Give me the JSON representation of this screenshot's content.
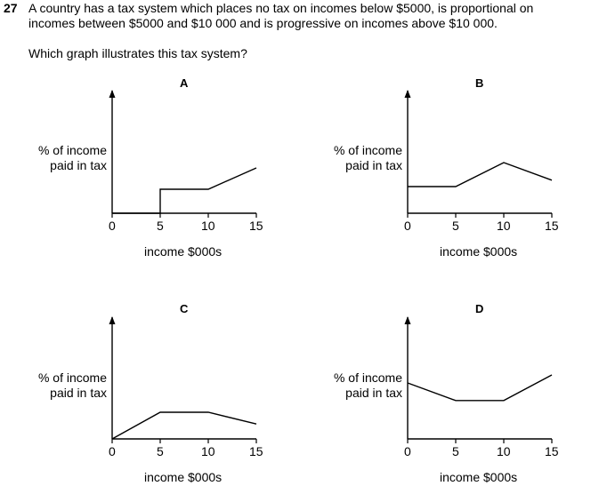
{
  "question": {
    "number": "27",
    "line1": "A country has a tax system which places no tax on incomes below $5000, is proportional on",
    "line2": "incomes between $5000 and $10 000 and is progressive on incomes above $10 000.",
    "prompt": "Which graph illustrates this tax system?"
  },
  "axis_common": {
    "ylabel_line1": "% of income",
    "ylabel_line2": "paid in tax",
    "xlabel": "income $000s",
    "ticks": [
      "0",
      "5",
      "10",
      "15"
    ]
  },
  "graphs": [
    {
      "label": "A",
      "points": [
        [
          0,
          0
        ],
        [
          5,
          0
        ],
        [
          5,
          0.45
        ],
        [
          10,
          0.45
        ],
        [
          15,
          0.85
        ]
      ]
    },
    {
      "label": "B",
      "points": [
        [
          0,
          0.5
        ],
        [
          5,
          0.5
        ],
        [
          10,
          0.95
        ],
        [
          15,
          0.62
        ]
      ]
    },
    {
      "label": "C",
      "points": [
        [
          0,
          0
        ],
        [
          5,
          0.5
        ],
        [
          10,
          0.5
        ],
        [
          15,
          0.28
        ]
      ]
    },
    {
      "label": "D",
      "points": [
        [
          0,
          1.05
        ],
        [
          5,
          0.72
        ],
        [
          10,
          0.72
        ],
        [
          15,
          1.2
        ]
      ]
    }
  ]
}
